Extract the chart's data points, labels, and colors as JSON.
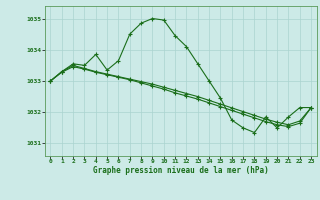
{
  "bg_color": "#cceae7",
  "grid_color": "#aad4d0",
  "line_color": "#1a6e1a",
  "xlabel": "Graphe pression niveau de la mer (hPa)",
  "ylim": [
    1030.6,
    1035.4
  ],
  "yticks": [
    1031,
    1032,
    1033,
    1034,
    1035
  ],
  "xlim": [
    -0.5,
    23.5
  ],
  "xticks": [
    0,
    1,
    2,
    3,
    4,
    5,
    6,
    7,
    8,
    9,
    10,
    11,
    12,
    13,
    14,
    15,
    16,
    17,
    18,
    19,
    20,
    21,
    22,
    23
  ],
  "main_y": [
    1033.0,
    1033.3,
    1033.55,
    1033.5,
    1033.85,
    1033.35,
    1033.65,
    1034.5,
    1034.85,
    1035.0,
    1034.95,
    1034.45,
    1034.1,
    1033.55,
    1033.0,
    1032.45,
    1031.75,
    1031.5,
    1031.35,
    1031.85,
    1031.5,
    1031.85,
    1032.15,
    1032.15
  ],
  "flat1_y": [
    1033.0,
    1033.3,
    1033.5,
    1033.4,
    1033.3,
    1033.22,
    1033.14,
    1033.06,
    1032.98,
    1032.9,
    1032.8,
    1032.7,
    1032.6,
    1032.5,
    1032.38,
    1032.26,
    1032.14,
    1032.02,
    1031.9,
    1031.78,
    1031.68,
    1031.6,
    1031.72,
    1032.15
  ],
  "flat2_y": [
    1033.0,
    1033.28,
    1033.46,
    1033.38,
    1033.28,
    1033.2,
    1033.12,
    1033.04,
    1032.94,
    1032.84,
    1032.74,
    1032.62,
    1032.52,
    1032.42,
    1032.3,
    1032.18,
    1032.06,
    1031.94,
    1031.82,
    1031.7,
    1031.6,
    1031.54,
    1031.65,
    1032.15
  ]
}
